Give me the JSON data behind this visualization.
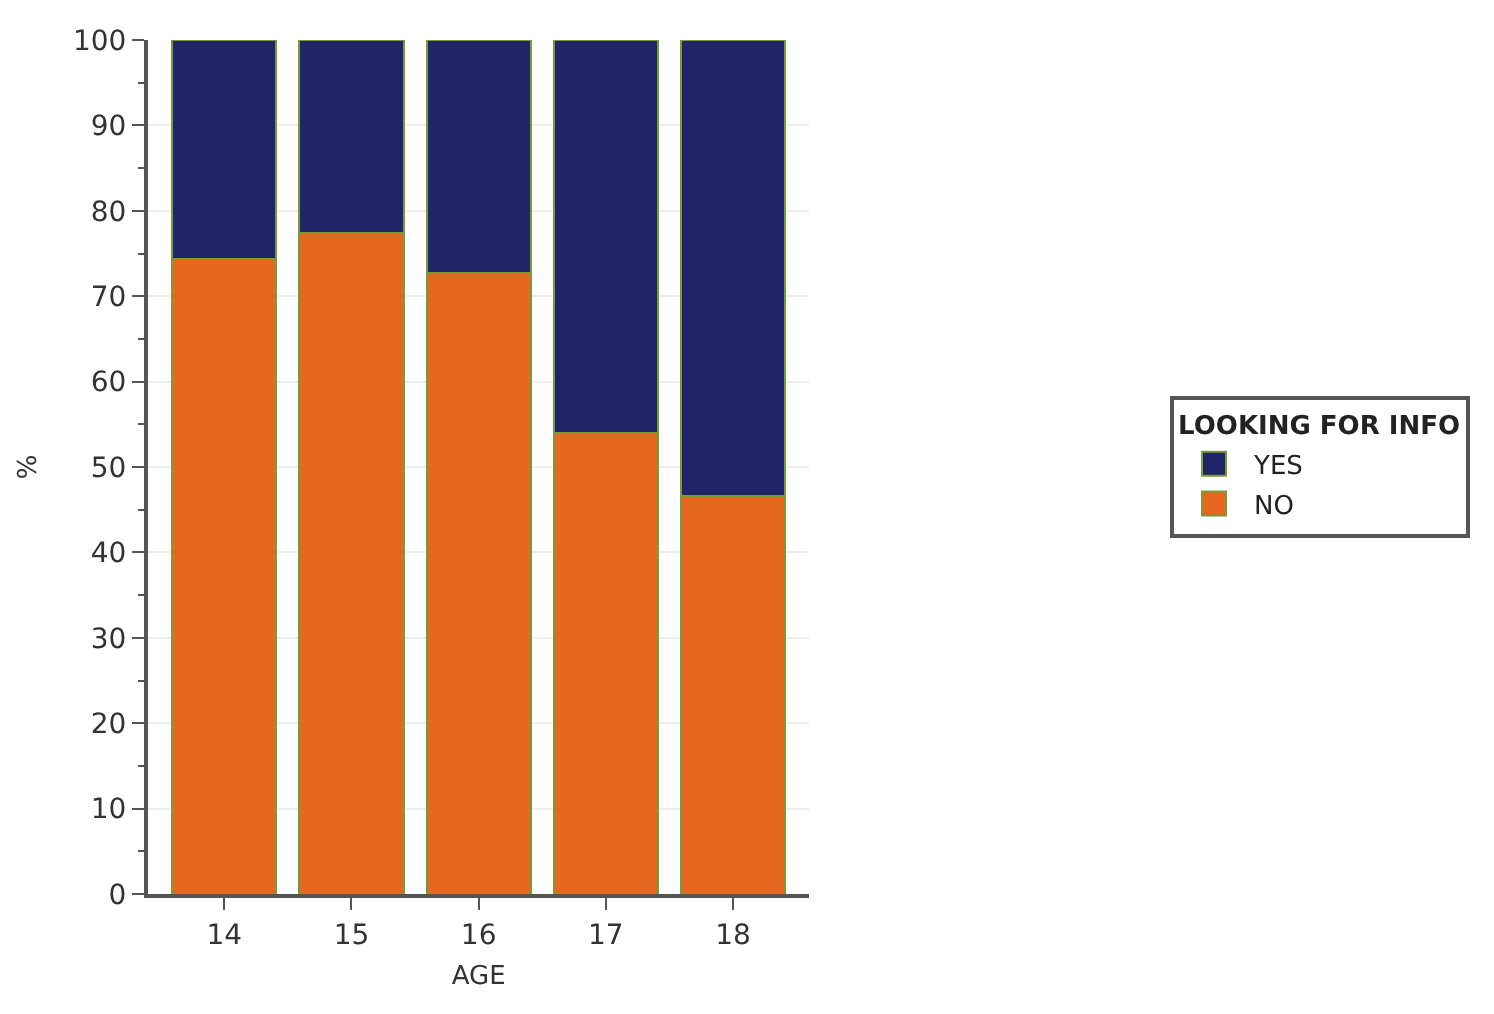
{
  "chart_data": {
    "type": "bar",
    "stacked": true,
    "xlabel": "AGE",
    "ylabel": "%",
    "legend_title": "LOOKING FOR INFO",
    "categories": [
      "14",
      "15",
      "16",
      "17",
      "18"
    ],
    "series": [
      {
        "name": "NO",
        "color": "#e8671e",
        "values": [
          74.3,
          77.4,
          72.7,
          54.0,
          46.6
        ]
      },
      {
        "name": "YES",
        "color": "#1f2566",
        "values": [
          25.7,
          22.6,
          27.3,
          46.0,
          53.4
        ]
      }
    ],
    "ylim": [
      0,
      100
    ],
    "yticks": [
      0,
      10,
      20,
      30,
      40,
      50,
      60,
      70,
      80,
      90,
      100
    ],
    "grid": "y",
    "legend": "right"
  }
}
